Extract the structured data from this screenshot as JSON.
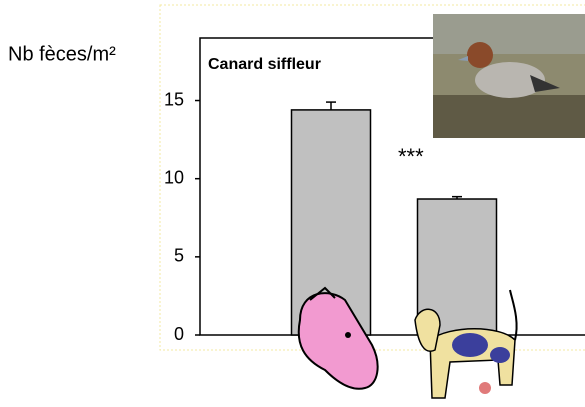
{
  "chart_data": {
    "type": "bar",
    "y_label": "Nb fèces/m²",
    "panel_label": "Canard siffleur",
    "annotation": "***",
    "categories": [
      null,
      null
    ],
    "values": [
      14.4,
      8.7
    ],
    "errors": [
      0.5,
      0.15
    ],
    "color": "#c0c0c0",
    "ylim": [
      0,
      19
    ],
    "yticks": [
      0,
      5,
      10,
      15
    ]
  }
}
